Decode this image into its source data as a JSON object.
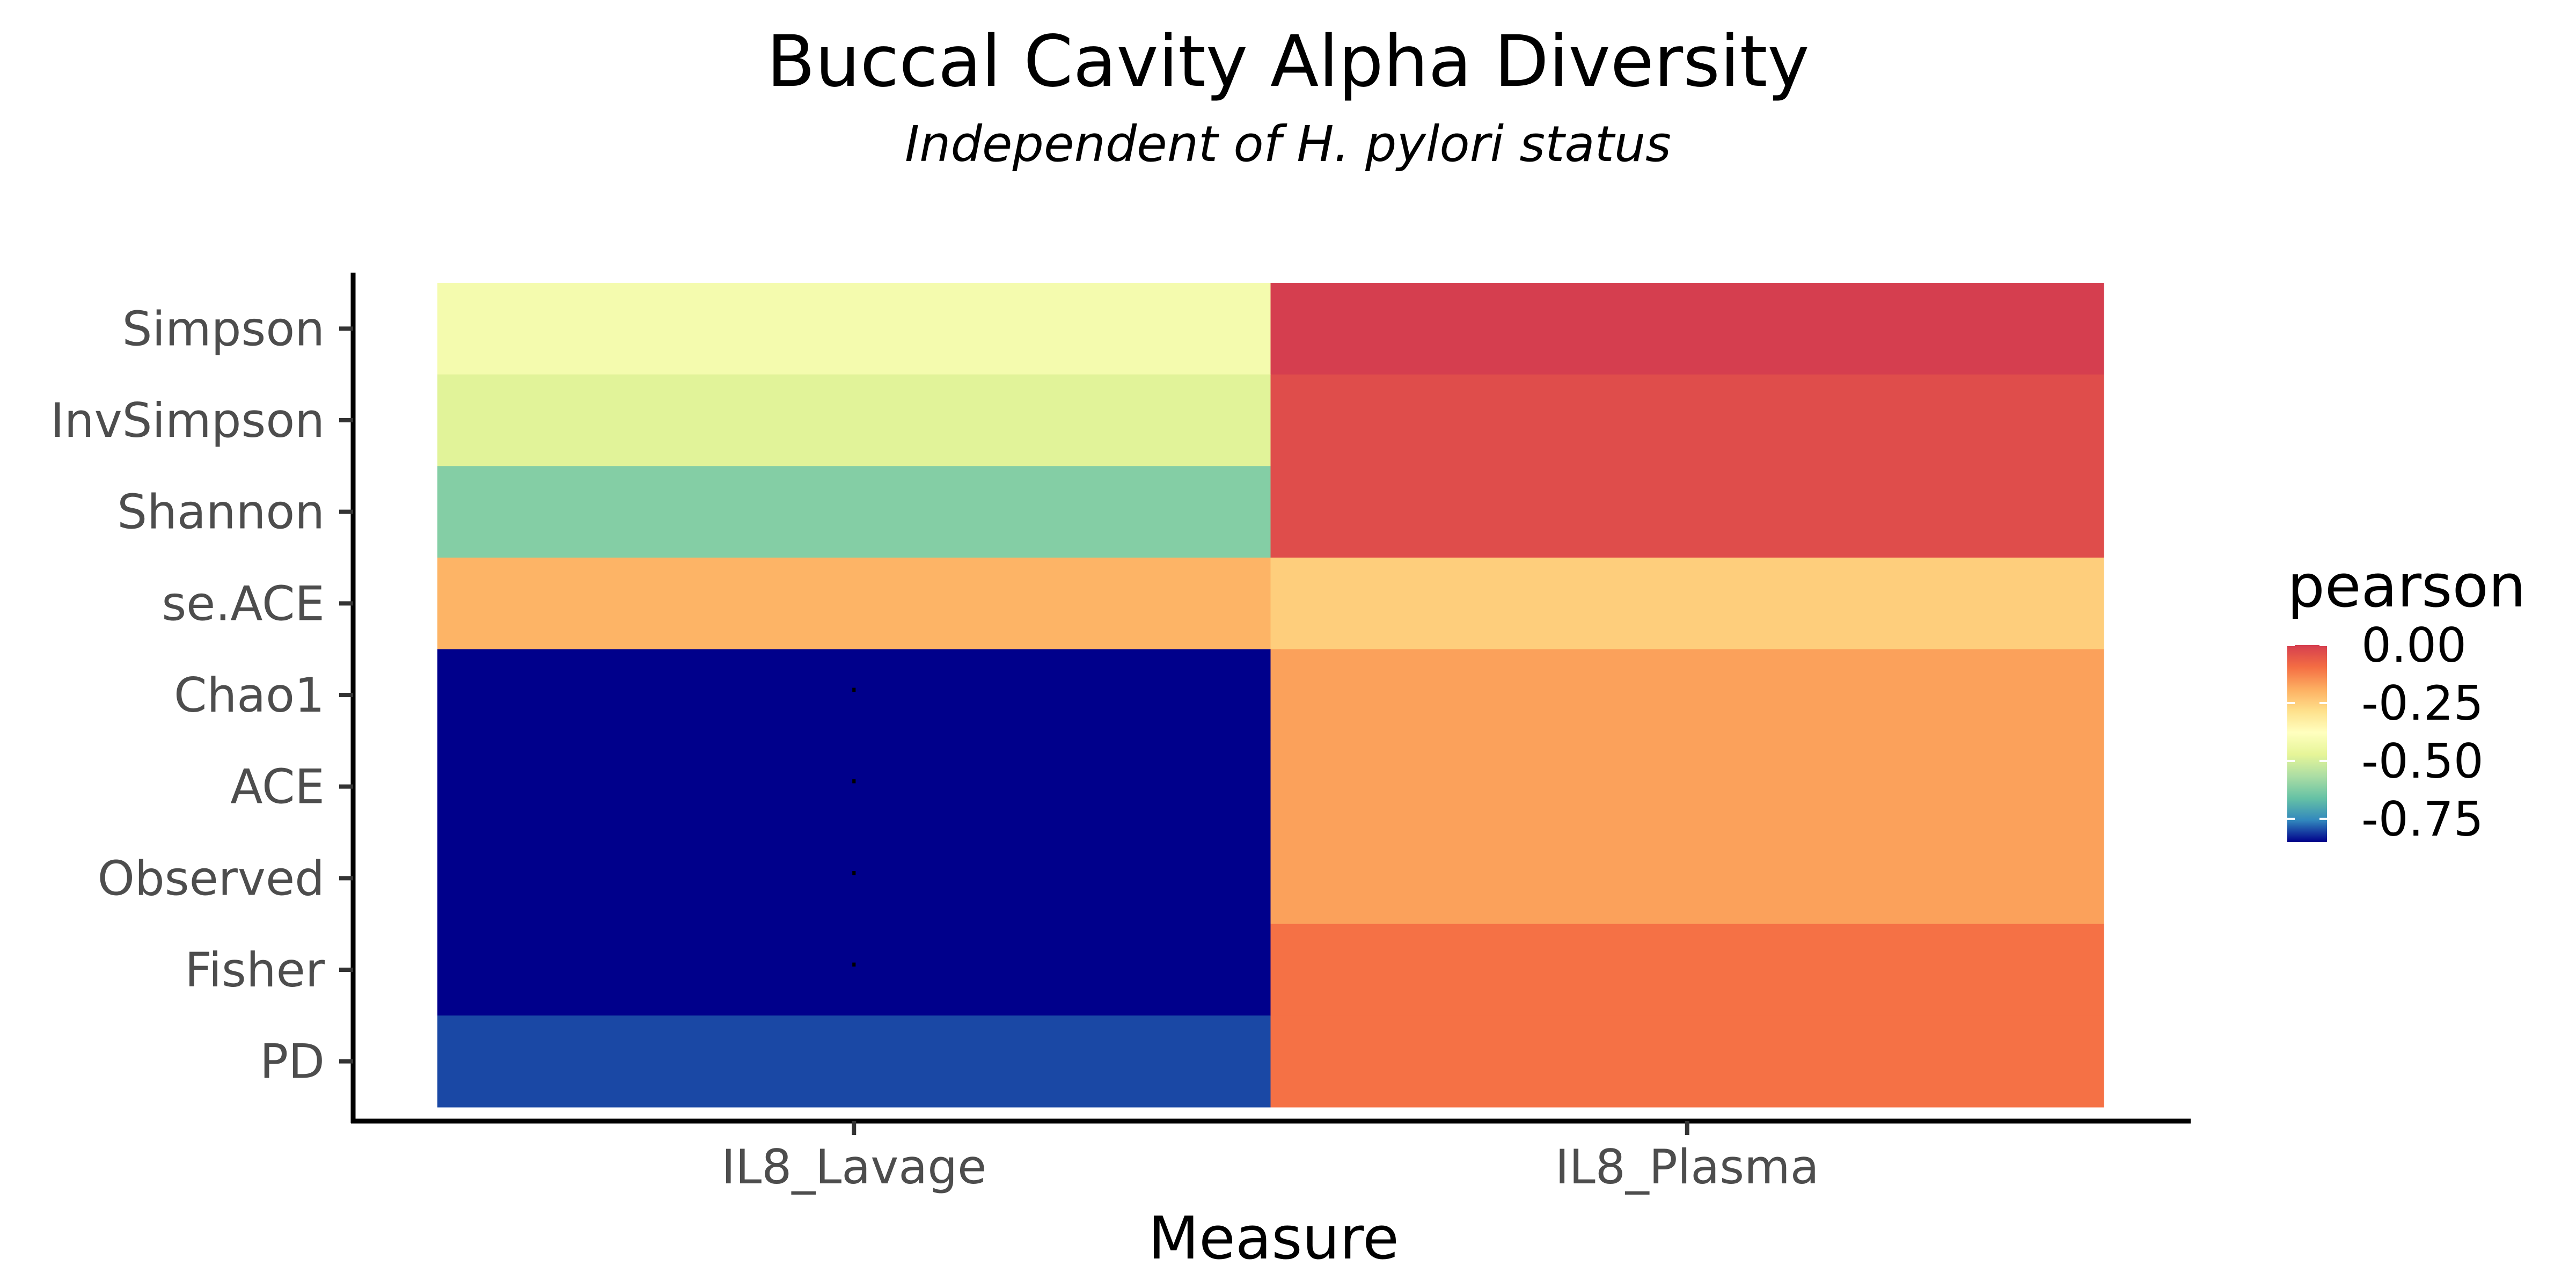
{
  "chart_data": {
    "type": "heatmap",
    "title": "Buccal Cavity Alpha Diversity",
    "subtitle": "Independent of H. pylori status",
    "xlabel": "Measure",
    "ylabel": "",
    "x_categories": [
      "IL8_Lavage",
      "IL8_Plasma"
    ],
    "y_categories": [
      "Simpson",
      "InvSimpson",
      "Shannon",
      "se.ACE",
      "Chao1",
      "ACE",
      "Observed",
      "Fisher",
      "PD"
    ],
    "values": [
      [
        -0.42,
        0.0
      ],
      [
        -0.48,
        -0.03
      ],
      [
        -0.62,
        -0.03
      ],
      [
        -0.2,
        -0.25
      ],
      [
        -0.85,
        -0.17
      ],
      [
        -0.85,
        -0.17
      ],
      [
        -0.85,
        -0.17
      ],
      [
        -0.85,
        -0.1
      ],
      [
        -0.8,
        -0.1
      ]
    ],
    "significance_marks": [
      [
        "",
        ""
      ],
      [
        "",
        ""
      ],
      [
        "",
        ""
      ],
      [
        "",
        ""
      ],
      [
        ".",
        ""
      ],
      [
        ".",
        ""
      ],
      [
        ".",
        ""
      ],
      [
        ".",
        ""
      ],
      [
        "",
        ""
      ]
    ],
    "legend": {
      "title": "pearson",
      "tick_values": [
        0.0,
        -0.25,
        -0.5,
        -0.75
      ],
      "tick_labels": [
        "0.00",
        "-0.25",
        "-0.50",
        "-0.75"
      ],
      "range": [
        -0.85,
        0.0
      ],
      "placement": "right",
      "palette": [
        "#00008B",
        "#3288BD",
        "#66C2A5",
        "#ABDDA4",
        "#E6F598",
        "#FFFFBF",
        "#FEE08B",
        "#FDAE61",
        "#F46D43",
        "#D53E4F"
      ]
    },
    "grid": false
  }
}
